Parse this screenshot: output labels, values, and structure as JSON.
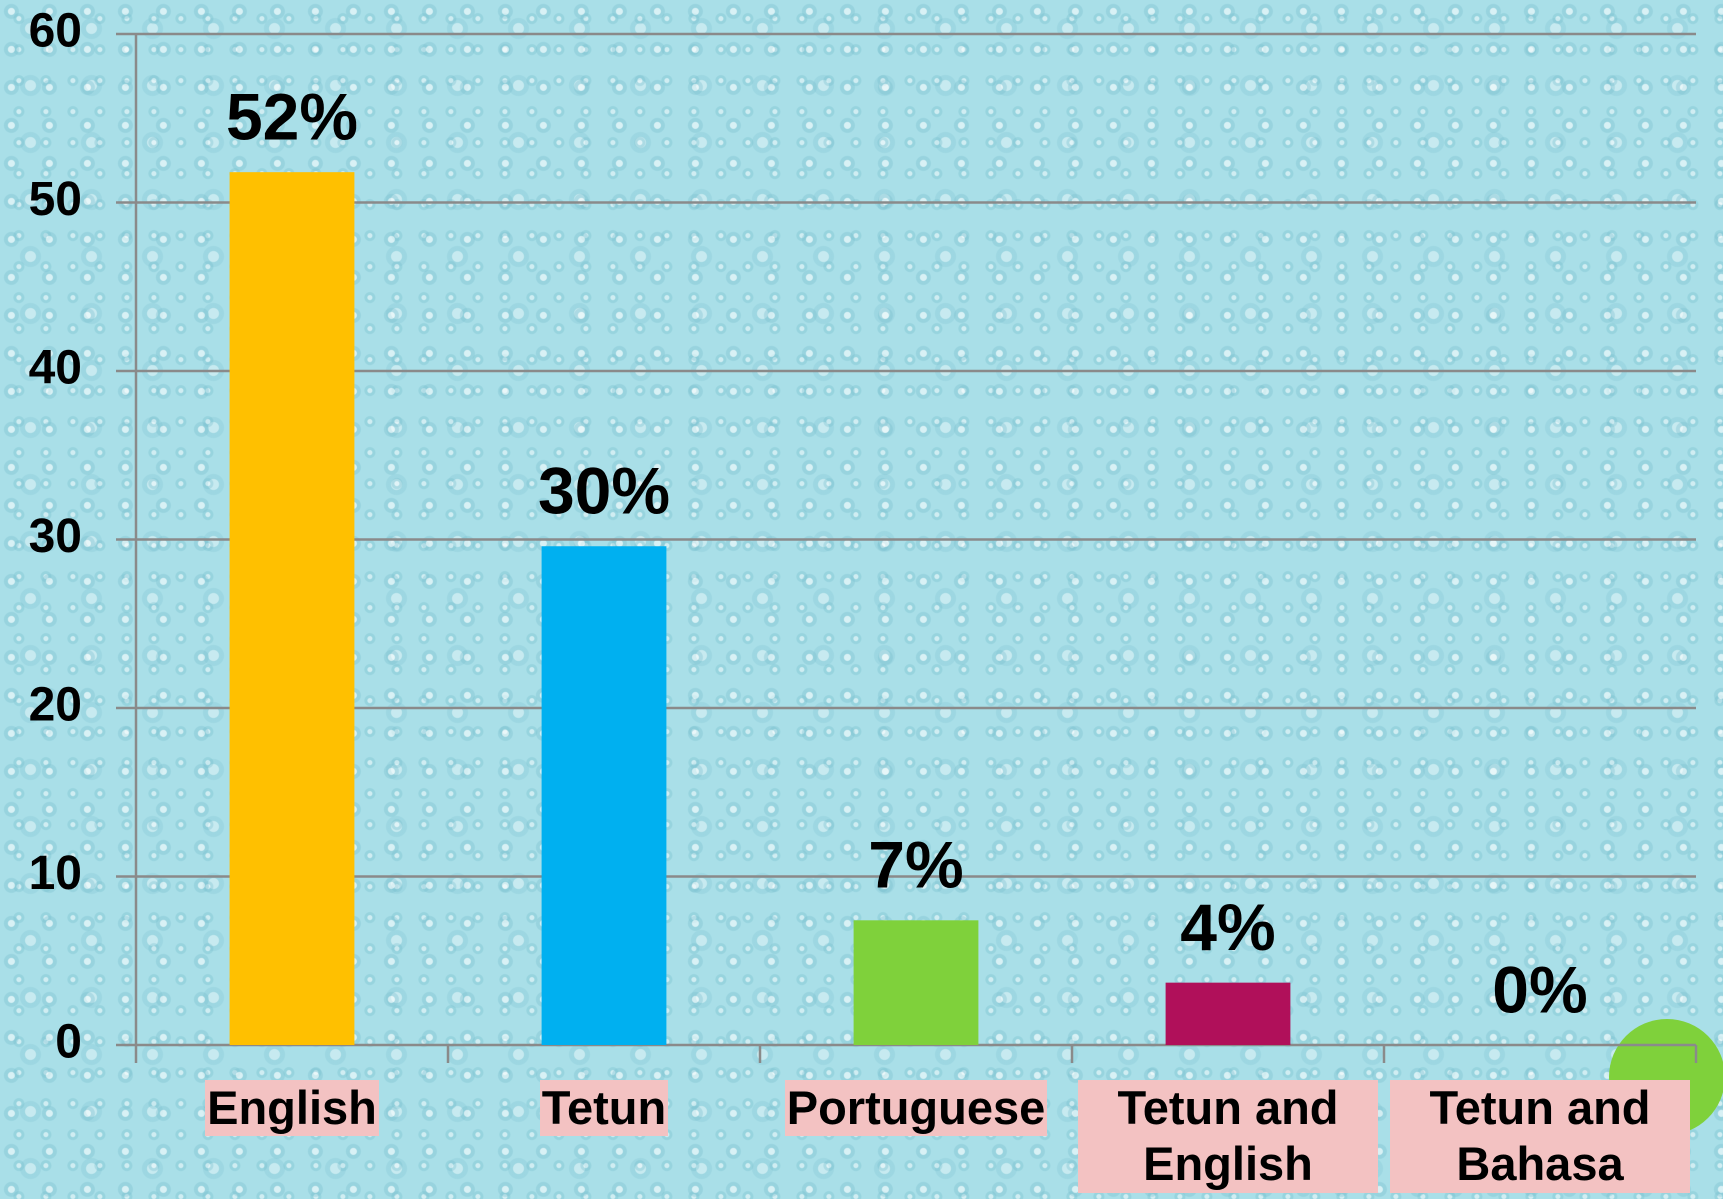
{
  "chart_data": {
    "type": "bar",
    "categories": [
      "English",
      "Tetun",
      "Portuguese",
      "Tetun and English",
      "Tetun and Bahasa"
    ],
    "values": [
      51.8,
      29.6,
      7.4,
      3.7,
      0
    ],
    "value_labels": [
      "52%",
      "30%",
      "7%",
      "4%",
      "0%"
    ],
    "colors": [
      "#ffc000",
      "#00b0f0",
      "#7fd13b",
      "#b0105a",
      "#7f7f7f"
    ],
    "ylim": [
      0,
      60
    ],
    "yticks": [
      0,
      10,
      20,
      30,
      40,
      50,
      60
    ],
    "grid": true
  }
}
